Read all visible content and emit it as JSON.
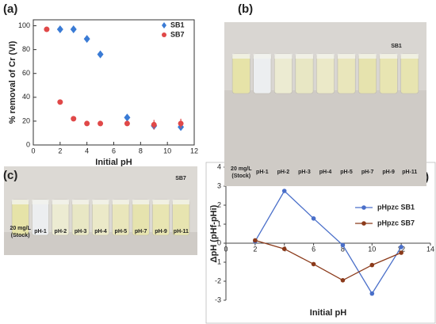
{
  "chart_data": [
    {
      "type": "scatter",
      "label": "(a)",
      "xlabel": "Initial pH",
      "ylabel": "% removal of Cr (VI)",
      "xlim": [
        0,
        12
      ],
      "xticks": [
        0,
        2,
        4,
        6,
        8,
        10,
        12
      ],
      "ylim": [
        0,
        105
      ],
      "yticks": [
        0,
        20,
        40,
        60,
        80,
        100
      ],
      "legend": "upper right",
      "series": [
        {
          "name": "SB1",
          "color": "#3a7bd5",
          "marker": "diamond",
          "x": [
            2,
            3,
            4,
            5,
            7,
            9,
            11
          ],
          "values": [
            97,
            97,
            89,
            76,
            23,
            16,
            15
          ],
          "errors": [
            2,
            2,
            2,
            2,
            2,
            3,
            2
          ]
        },
        {
          "name": "SB7",
          "color": "#e04848",
          "marker": "circle",
          "x": [
            1,
            2,
            3,
            4,
            5,
            7,
            9,
            11
          ],
          "values": [
            97,
            36,
            22,
            18,
            18,
            18,
            17,
            18
          ],
          "errors": [
            2,
            2,
            2,
            2,
            2,
            2,
            4,
            4
          ]
        }
      ]
    },
    {
      "type": "line",
      "label": "(d)",
      "xlabel": "Initial pH",
      "ylabel": "ΔpH (pHf-pHi)",
      "xlim": [
        0,
        14
      ],
      "xticks": [
        0,
        2,
        4,
        6,
        8,
        10,
        12,
        14
      ],
      "ylim": [
        -3,
        4
      ],
      "yticks": [
        -3,
        -2,
        -1,
        0,
        1,
        2,
        3,
        4
      ],
      "legend": "upper right",
      "series": [
        {
          "name": "pHpzc SB1",
          "color": "#4a6fc9",
          "x": [
            2,
            4,
            6,
            8,
            10,
            12
          ],
          "values": [
            0.1,
            2.75,
            1.3,
            -0.1,
            -2.65,
            -0.2
          ]
        },
        {
          "name": "pHpzc SB7",
          "color": "#8b3a1a",
          "x": [
            2,
            4,
            6,
            8,
            10,
            12
          ],
          "values": [
            0.15,
            -0.3,
            -1.1,
            -1.95,
            -1.15,
            -0.5
          ]
        }
      ]
    }
  ],
  "photos": [
    {
      "label": "(b)",
      "sample": "SB1",
      "stock": [
        "20 mg/L",
        "(Stock)"
      ],
      "vials": [
        "pH-1",
        "pH-2",
        "pH-3",
        "pH-4",
        "pH-5",
        "pH-7",
        "pH-9",
        "pH-11"
      ]
    },
    {
      "label": "(c)",
      "sample": "SB7",
      "stock": [
        "20 mg/L",
        "(Stock)"
      ],
      "vials": [
        "pH-1",
        "pH-2",
        "pH-3",
        "pH-4",
        "pH-5",
        "pH-7",
        "pH-9",
        "pH-11"
      ]
    }
  ]
}
